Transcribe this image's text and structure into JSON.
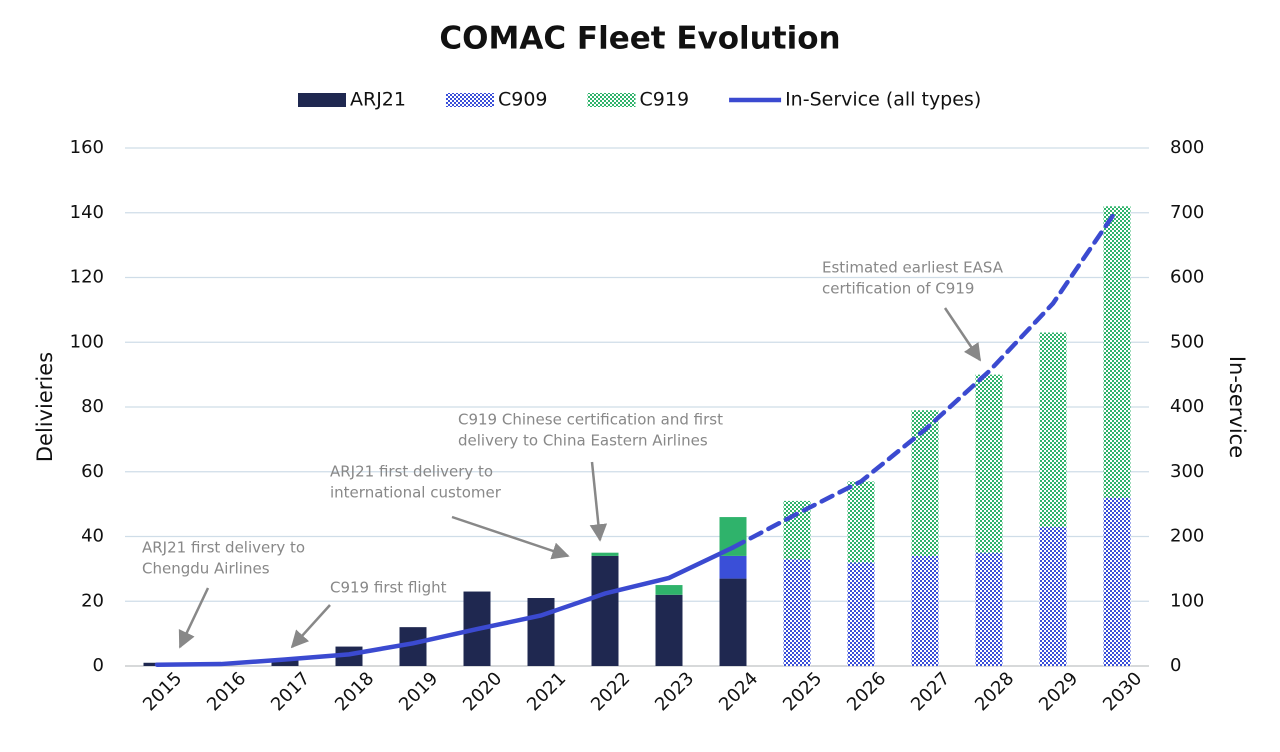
{
  "chart_data": {
    "type": "bar",
    "title": "COMAC Fleet Evolution",
    "y_label": "Delivieries",
    "y2_label": "In-service",
    "categories": [
      "2015",
      "2016",
      "2017",
      "2018",
      "2019",
      "2020",
      "2021",
      "2022",
      "2023",
      "2024",
      "2025",
      "2026",
      "2027",
      "2028",
      "2029",
      "2030"
    ],
    "projection_from": "2025",
    "series": [
      {
        "name": "ARJ21",
        "color": "#1f2850",
        "values": [
          1,
          0,
          2,
          6,
          12,
          23,
          21,
          34,
          22,
          27,
          null,
          null,
          null,
          null,
          null,
          null
        ]
      },
      {
        "name": "C909",
        "color": "#3a4fd8",
        "values": [
          null,
          null,
          null,
          null,
          null,
          null,
          null,
          null,
          null,
          7,
          33,
          32,
          34,
          35,
          43,
          52
        ]
      },
      {
        "name": "C919",
        "color": "#2fb36b",
        "values": [
          null,
          null,
          null,
          null,
          null,
          null,
          null,
          1,
          3,
          12,
          18,
          25,
          45,
          55,
          60,
          90
        ]
      },
      {
        "name": "In-Service (all types)",
        "type": "line",
        "axis": "y2",
        "color": "#3b4ad0",
        "values": [
          2,
          3,
          10,
          18,
          35,
          57,
          78,
          112,
          136,
          183,
          235,
          285,
          365,
          455,
          560,
          705
        ]
      }
    ],
    "ylim": [
      0,
      160
    ],
    "yticks": [
      0,
      20,
      40,
      60,
      80,
      100,
      120,
      140,
      160
    ],
    "y2lim": [
      0,
      800
    ],
    "y2ticks": [
      0,
      100,
      200,
      300,
      400,
      500,
      600,
      700,
      800
    ],
    "grid": true,
    "legend": "top",
    "annotations": [
      {
        "lines": [
          "ARJ21 first delivery to",
          "Chengdu Airlines"
        ]
      },
      {
        "lines": [
          "C919 first flight"
        ]
      },
      {
        "lines": [
          "ARJ21 first delivery to",
          "international customer"
        ]
      },
      {
        "lines": [
          "C919 Chinese certification and first",
          "delivery to China Eastern Airlines"
        ]
      },
      {
        "lines": [
          "Estimated earliest EASA",
          "certification of C919"
        ]
      }
    ]
  }
}
